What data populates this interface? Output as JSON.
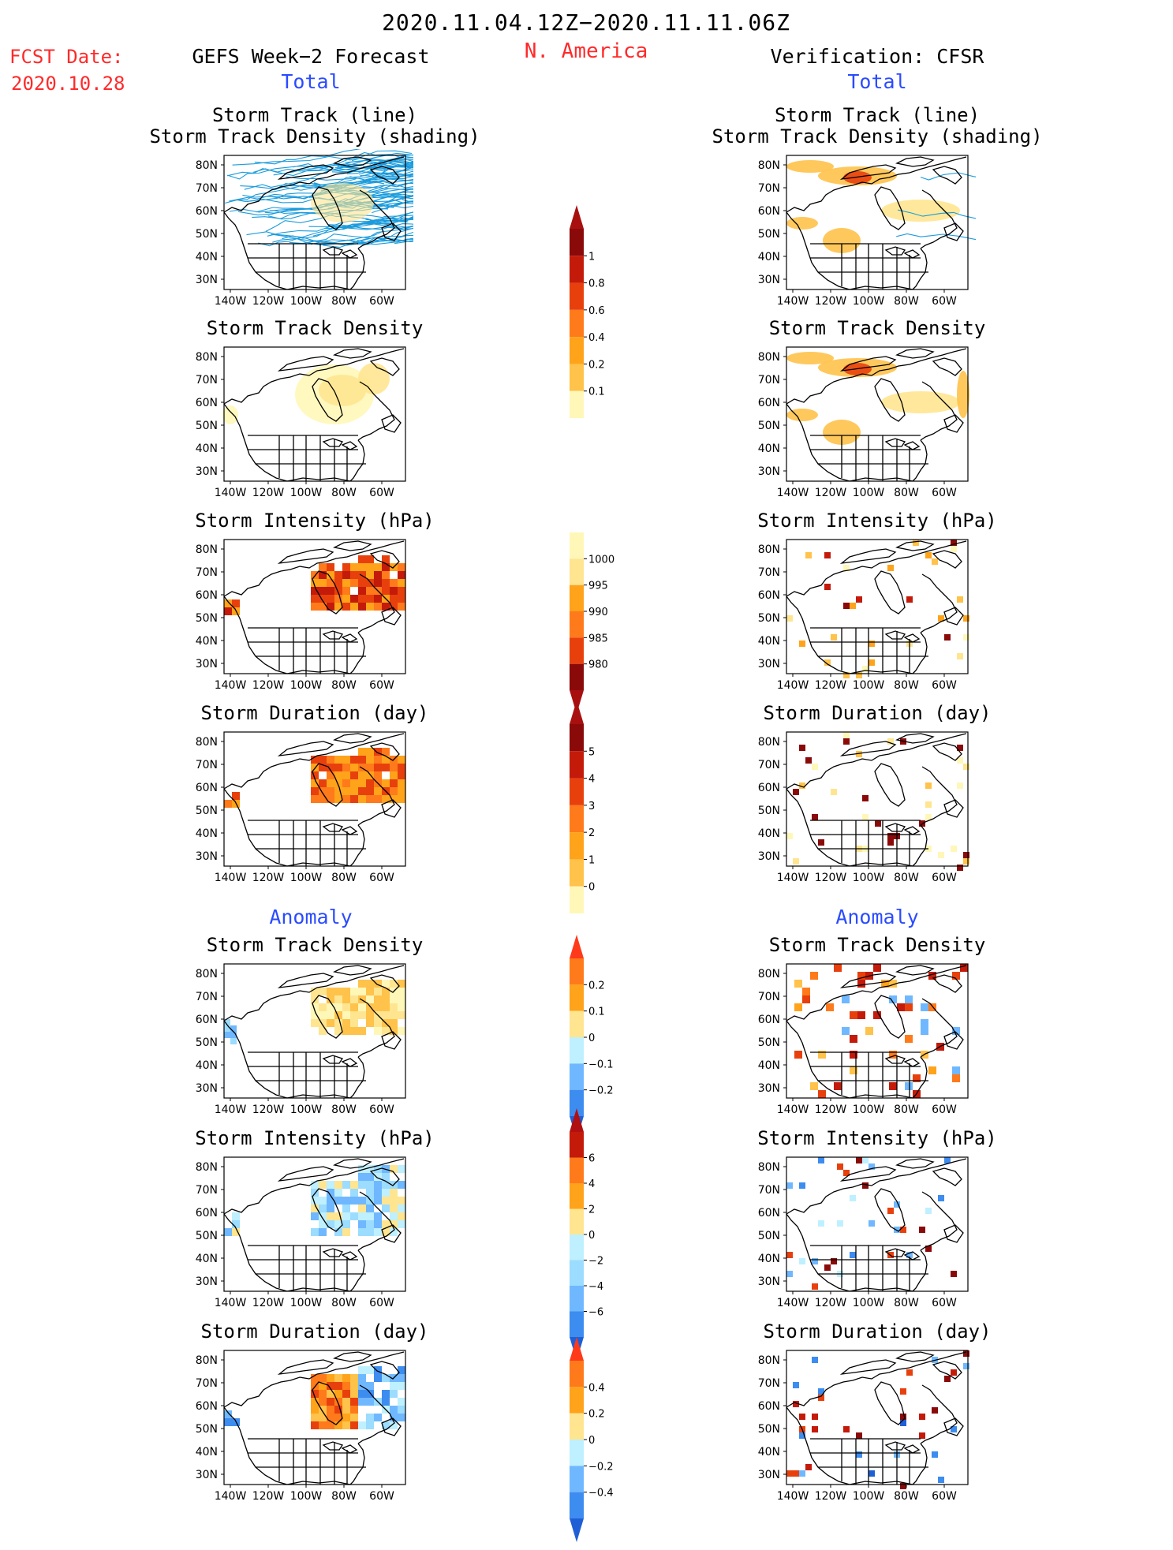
{
  "header": {
    "period": "2020.11.04.12Z−2020.11.11.06Z",
    "region": "N. America",
    "fcst_label": "FCST Date:",
    "fcst_date": "2020.10.28",
    "left_title": "GEFS Week−2 Forecast",
    "right_title": "Verification: CFSR",
    "total_label": "Total",
    "anomaly_label": "Anomaly"
  },
  "panel_titles": {
    "track_line": "Storm Track (line)",
    "track_density_shading": "Storm Track Density (shading)",
    "track_density": "Storm Track Density",
    "intensity": "Storm Intensity (hPa)",
    "duration": "Storm Duration (day)"
  },
  "axes": {
    "lat_labels": [
      "80N",
      "70N",
      "60N",
      "50N",
      "40N",
      "30N"
    ],
    "lon_labels": [
      "140W",
      "120W",
      "100W",
      "80W",
      "60W"
    ]
  },
  "colorbars": {
    "density_total": [
      "1",
      "0.8",
      "0.6",
      "0.4",
      "0.2",
      "0.1"
    ],
    "intensity_total": [
      "1000",
      "995",
      "990",
      "985",
      "980"
    ],
    "duration_total": [
      "5",
      "4",
      "3",
      "2",
      "1",
      "0"
    ],
    "density_anomaly": [
      "0.2",
      "0.1",
      "0",
      "−0.1",
      "−0.2"
    ],
    "intensity_anomaly": [
      "6",
      "4",
      "2",
      "0",
      "−2",
      "−4",
      "−6"
    ],
    "duration_anomaly": [
      "0.4",
      "0.2",
      "0",
      "−0.2",
      "−0.4"
    ]
  },
  "colors": {
    "title_red": "#ff2a2a",
    "label_blue": "#2a4bff",
    "track_line": "#1a9bdc",
    "warm_scale": [
      "#fff7b8",
      "#ffe590",
      "#ffc24a",
      "#ffa31a",
      "#ff7a1a",
      "#e8400d",
      "#c41a0a",
      "#8a0a0a"
    ],
    "cool_scale": [
      "#bff0ff",
      "#9bdcff",
      "#6fb8ff",
      "#3d8cf0",
      "#1f5fd6"
    ]
  }
}
